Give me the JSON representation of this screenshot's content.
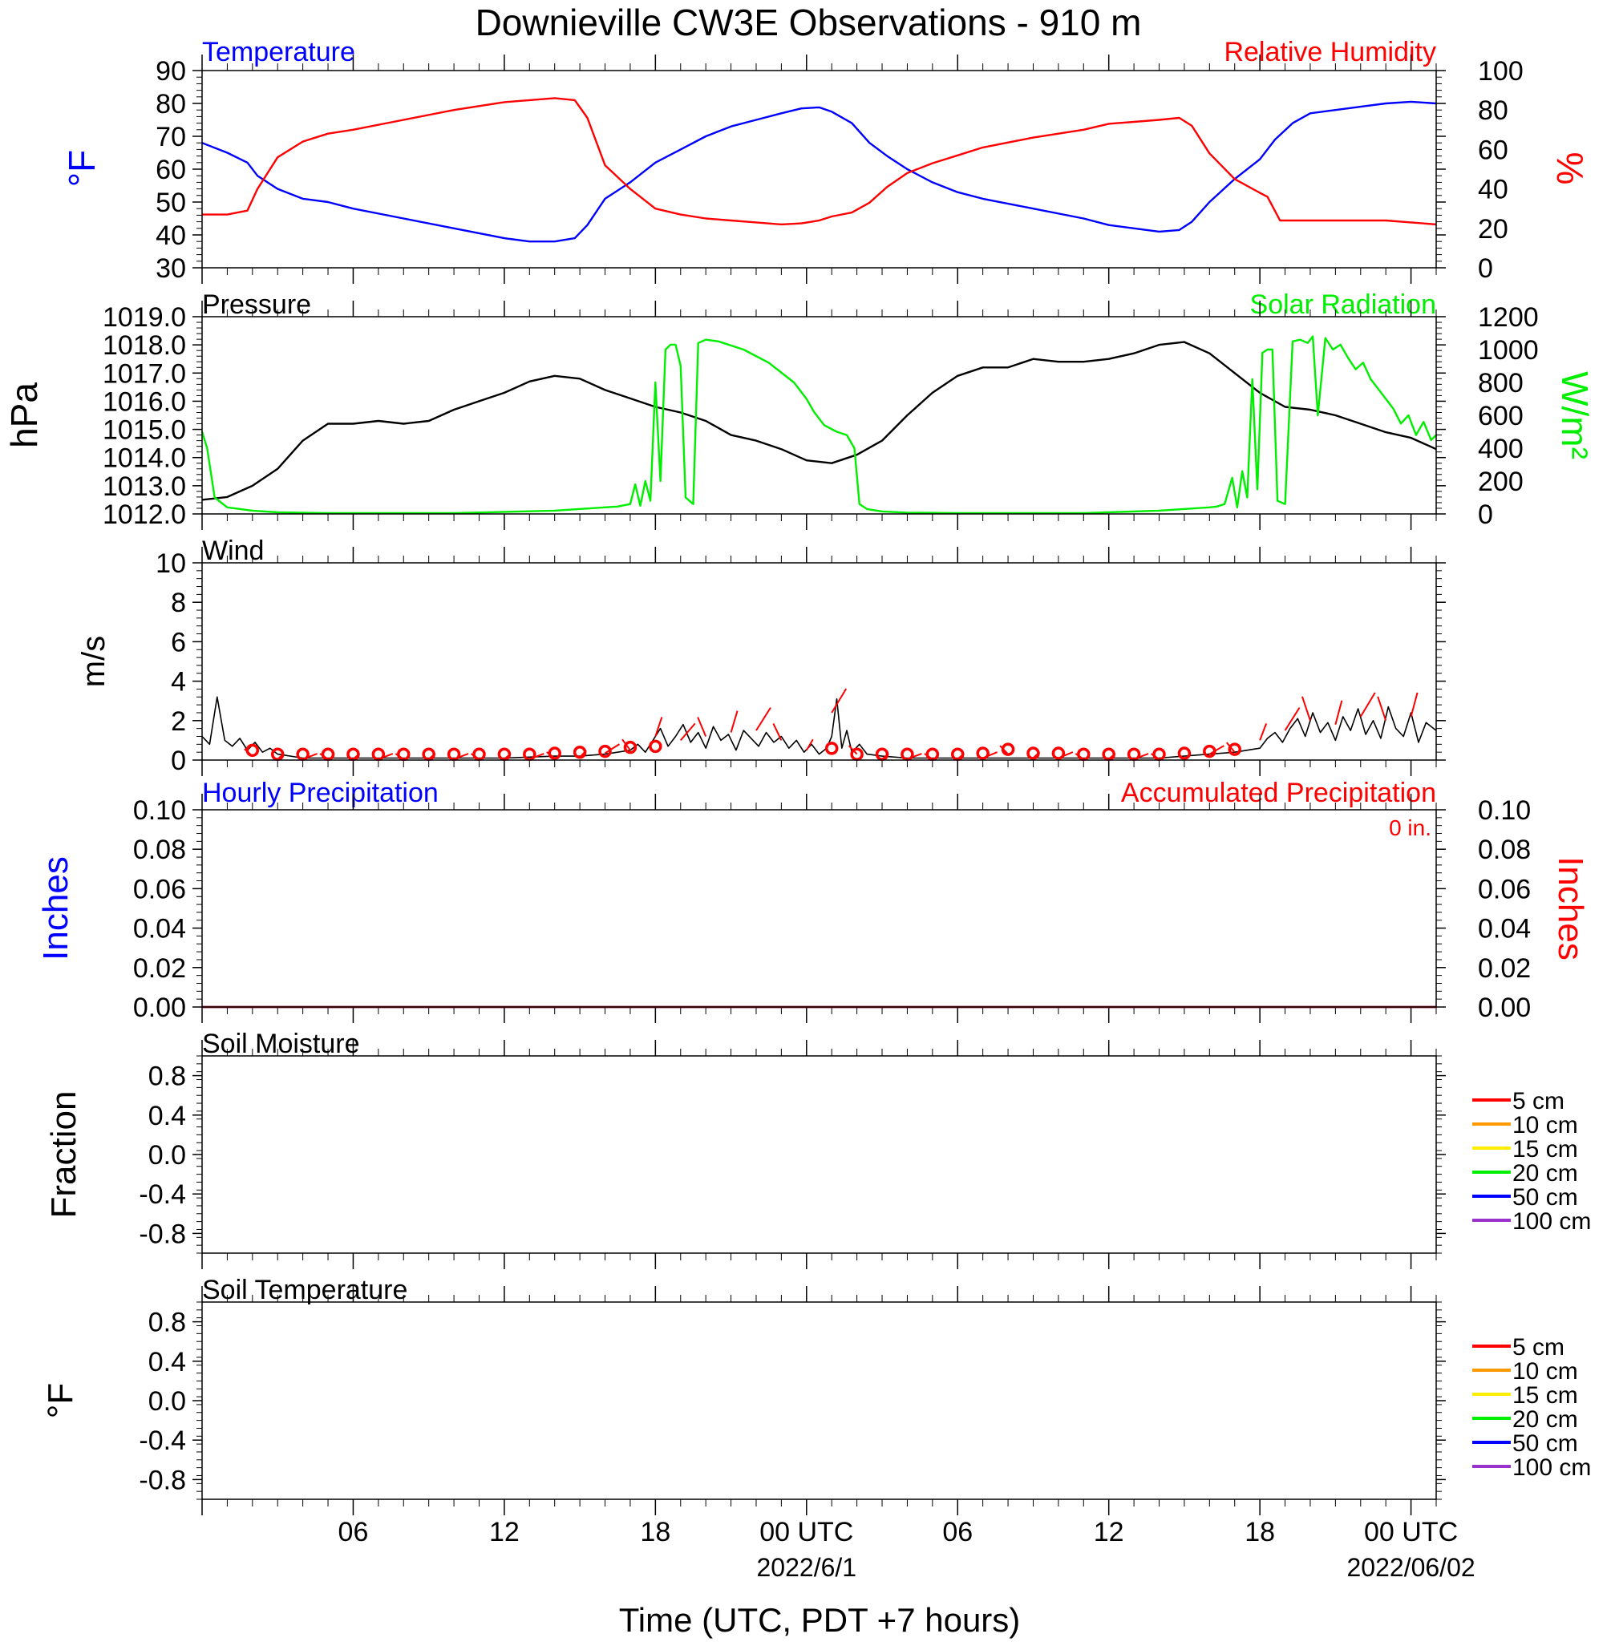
{
  "title": "Downieville CW3E Observations - 910 m",
  "xlabel": "Time (UTC, PDT +7 hours)",
  "x_ticks": [
    {
      "hour": 6,
      "label": "06",
      "date": ""
    },
    {
      "hour": 12,
      "label": "12",
      "date": ""
    },
    {
      "hour": 18,
      "label": "18",
      "date": ""
    },
    {
      "hour": 24,
      "label": "00 UTC",
      "date": "2022/6/1"
    },
    {
      "hour": 30,
      "label": "06",
      "date": ""
    },
    {
      "hour": 36,
      "label": "12",
      "date": ""
    },
    {
      "hour": 42,
      "label": "18",
      "date": ""
    },
    {
      "hour": 48,
      "label": "00 UTC",
      "date": "2022/06/02"
    }
  ],
  "colors": {
    "temp": "#0000ff",
    "rh": "#ff0000",
    "pressure": "#000000",
    "solar": "#00ee00",
    "wind": "#000000",
    "gust": "#ff0000",
    "precip_hourly": "#0000ff",
    "precip_acc": "#cc0000"
  },
  "panels": {
    "temp": {
      "title_left": "Temperature",
      "title_right": "Relative Humidity",
      "ylabel_left": "°F",
      "ylabel_right": "%"
    },
    "pressure": {
      "title_left": "Pressure",
      "title_right": "Solar Radiation",
      "ylabel_left": "hPa",
      "ylabel_right": "W/m²"
    },
    "wind": {
      "title_left": "Wind",
      "ylabel_left": "m/s"
    },
    "precip": {
      "title_left": "Hourly Precipitation",
      "title_right": "Accumulated Precipitation",
      "ylabel_left": "Inches",
      "ylabel_right": "Inches",
      "total": "0 in."
    },
    "soilm": {
      "title_left": "Soil Moisture",
      "ylabel_left": "Fraction"
    },
    "soilt": {
      "title_left": "Soil Temperature",
      "ylabel_left": "°F"
    }
  },
  "soil_legend": [
    {
      "label": "5 cm",
      "color": "#ff0000"
    },
    {
      "label": "10 cm",
      "color": "#ff9900"
    },
    {
      "label": "15 cm",
      "color": "#ffee00"
    },
    {
      "label": "20 cm",
      "color": "#00ee00"
    },
    {
      "label": "50 cm",
      "color": "#0000ff"
    },
    {
      "label": "100 cm",
      "color": "#9933cc"
    }
  ],
  "chart_data": [
    {
      "type": "line",
      "title": "Temperature / Relative Humidity",
      "x_units": "hours since 2022-05-31 00 UTC",
      "xlim": [
        0,
        49
      ],
      "ylim_left": [
        30,
        90
      ],
      "yticks_left": [
        "90",
        "80",
        "70",
        "60",
        "50",
        "40",
        "30"
      ],
      "ylim_right": [
        0,
        100
      ],
      "yticks_right": [
        "100",
        "80",
        "60",
        "40",
        "20",
        "0"
      ],
      "series": [
        {
          "name": "Temperature",
          "axis": "left",
          "x": [
            0,
            1,
            1.8,
            2.2,
            3,
            4,
            5,
            6,
            8,
            10,
            12,
            13,
            14,
            14.8,
            15.3,
            16,
            17,
            18,
            19,
            20,
            21,
            22,
            23,
            23.8,
            24.5,
            25,
            25.8,
            26.5,
            27.2,
            28,
            29,
            30,
            31,
            33,
            35,
            36,
            37,
            38,
            38.8,
            39.3,
            40,
            41,
            42,
            42.6,
            43.3,
            44,
            45,
            46,
            47,
            48,
            49
          ],
          "y": [
            68,
            65,
            62,
            58,
            54,
            51,
            50,
            48,
            45,
            42,
            39,
            38,
            38,
            39,
            43,
            51,
            56,
            62,
            66,
            70,
            73,
            75,
            77,
            78.5,
            78.8,
            77.5,
            74,
            68,
            64,
            60,
            56,
            53,
            51,
            48,
            45,
            43,
            42,
            41,
            41.5,
            44,
            50,
            57,
            63,
            69,
            74,
            77,
            78,
            79,
            80,
            80.5,
            80
          ]
        },
        {
          "name": "Relative Humidity",
          "axis": "right",
          "x": [
            0,
            1,
            1.8,
            2.2,
            3,
            4,
            5,
            6,
            8,
            10,
            12,
            13,
            14,
            14.8,
            15.3,
            16,
            17,
            18,
            19,
            20,
            21,
            22,
            23,
            23.8,
            24.5,
            25,
            25.8,
            26.5,
            27.2,
            28,
            29,
            30,
            31,
            33,
            35,
            36,
            37,
            38,
            38.8,
            39.3,
            40,
            41,
            42,
            42.3,
            42.8,
            44,
            45,
            46,
            47,
            48,
            49
          ],
          "y": [
            27,
            27,
            29,
            40,
            56,
            64,
            68,
            70,
            75,
            80,
            84,
            85,
            86,
            85,
            76,
            52,
            40,
            30,
            27,
            25,
            24,
            23,
            22,
            22.5,
            24,
            26,
            28,
            33,
            41,
            48,
            53,
            57,
            61,
            66,
            70,
            73,
            74,
            75,
            76,
            72,
            58,
            45,
            38,
            36,
            24,
            24,
            24,
            24,
            24,
            23,
            22
          ]
        }
      ]
    },
    {
      "type": "line",
      "title": "Pressure / Solar Radiation",
      "x_units": "hours since 2022-05-31 00 UTC",
      "xlim": [
        0,
        49
      ],
      "ylim_left": [
        1012.0,
        1019.0
      ],
      "yticks_left": [
        "1019.0",
        "1018.0",
        "1017.0",
        "1016.0",
        "1015.0",
        "1014.0",
        "1013.0",
        "1012.0"
      ],
      "ylim_right": [
        0,
        1200
      ],
      "yticks_right": [
        "1200",
        "1000",
        "800",
        "600",
        "400",
        "200",
        "0"
      ],
      "series": [
        {
          "name": "Pressure",
          "axis": "left",
          "x": [
            0,
            1,
            2,
            3,
            4,
            5,
            6,
            7,
            8,
            9,
            10,
            11,
            12,
            13,
            14,
            15,
            16,
            17,
            18,
            19,
            20,
            21,
            22,
            23,
            24,
            25,
            26,
            27,
            28,
            29,
            30,
            31,
            32,
            33,
            34,
            35,
            36,
            37,
            38,
            39,
            40,
            41,
            42,
            43,
            44,
            45,
            46,
            47,
            48,
            49
          ],
          "y": [
            1012.5,
            1012.6,
            1013.0,
            1013.6,
            1014.6,
            1015.2,
            1015.2,
            1015.3,
            1015.2,
            1015.3,
            1015.7,
            1016.0,
            1016.3,
            1016.7,
            1016.9,
            1016.8,
            1016.4,
            1016.1,
            1015.8,
            1015.6,
            1015.3,
            1014.8,
            1014.6,
            1014.3,
            1013.9,
            1013.8,
            1014.1,
            1014.6,
            1015.5,
            1016.3,
            1016.9,
            1017.2,
            1017.2,
            1017.5,
            1017.4,
            1017.4,
            1017.5,
            1017.7,
            1018.0,
            1018.1,
            1017.7,
            1017.0,
            1016.3,
            1015.8,
            1015.7,
            1015.5,
            1015.2,
            1014.9,
            1014.7,
            1014.3
          ]
        },
        {
          "name": "Solar Radiation",
          "axis": "right",
          "x": [
            0,
            0.2,
            0.5,
            1,
            2,
            3,
            5,
            10,
            14,
            16,
            16.5,
            17,
            17.2,
            17.4,
            17.6,
            17.8,
            18.0,
            18.2,
            18.4,
            18.6,
            18.8,
            19.0,
            19.2,
            19.5,
            19.7,
            20.0,
            20.5,
            21.5,
            22.5,
            23.5,
            24.0,
            24.3,
            24.7,
            25.2,
            25.6,
            25.9,
            26.1,
            26.4,
            27,
            28,
            30,
            35,
            38,
            40,
            40.3,
            40.6,
            40.9,
            41.1,
            41.3,
            41.5,
            41.7,
            41.9,
            42.1,
            42.3,
            42.5,
            42.7,
            43.0,
            43.3,
            43.6,
            43.9,
            44.1,
            44.3,
            44.6,
            44.9,
            45.2,
            45.5,
            45.8,
            46.1,
            46.4,
            46.7,
            47.0,
            47.3,
            47.6,
            47.9,
            48.2,
            48.5,
            48.8,
            49
          ],
          "y": [
            500,
            400,
            100,
            40,
            20,
            10,
            5,
            5,
            20,
            40,
            45,
            60,
            180,
            50,
            200,
            80,
            800,
            200,
            1000,
            1030,
            1030,
            900,
            100,
            60,
            1040,
            1060,
            1050,
            1000,
            920,
            800,
            700,
            620,
            540,
            500,
            480,
            400,
            60,
            30,
            15,
            8,
            5,
            5,
            20,
            40,
            45,
            60,
            220,
            40,
            260,
            100,
            820,
            150,
            980,
            1000,
            1000,
            80,
            60,
            1050,
            1060,
            1040,
            1080,
            600,
            1070,
            1000,
            1030,
            950,
            880,
            920,
            820,
            760,
            700,
            640,
            550,
            600,
            480,
            560,
            450,
            480
          ]
        }
      ]
    },
    {
      "type": "line",
      "title": "Wind",
      "x_units": "hours since 2022-05-31 00 UTC",
      "xlim": [
        0,
        49
      ],
      "ylim_left": [
        0,
        10
      ],
      "yticks_left": [
        "10",
        "8",
        "6",
        "4",
        "2",
        "0"
      ],
      "series": [
        {
          "name": "Wind speed",
          "axis": "left",
          "x": [
            0,
            0.3,
            0.6,
            0.9,
            1.2,
            1.5,
            1.8,
            2.1,
            2.4,
            2.7,
            3,
            4,
            6,
            8,
            10,
            12,
            14,
            15,
            16,
            16.5,
            17,
            17.3,
            17.6,
            17.9,
            18.2,
            18.5,
            18.8,
            19.1,
            19.4,
            19.7,
            20,
            20.3,
            20.6,
            20.9,
            21.2,
            21.5,
            21.8,
            22.1,
            22.4,
            22.7,
            23,
            23.3,
            23.6,
            23.9,
            24.2,
            24.5,
            24.8,
            25.0,
            25.2,
            25.4,
            25.6,
            25.8,
            26.1,
            26.4,
            27,
            28,
            30,
            32,
            34,
            36,
            38,
            40,
            41,
            41.5,
            42,
            42.3,
            42.6,
            42.9,
            43.2,
            43.5,
            43.8,
            44.1,
            44.4,
            44.7,
            45,
            45.3,
            45.6,
            45.9,
            46.2,
            46.5,
            46.8,
            47.1,
            47.4,
            47.7,
            48,
            48.3,
            48.6,
            49
          ],
          "y": [
            1.2,
            0.8,
            3.2,
            1.0,
            0.7,
            1.1,
            0.5,
            0.9,
            0.4,
            0.6,
            0.3,
            0.1,
            0.1,
            0.1,
            0.1,
            0.1,
            0.2,
            0.2,
            0.3,
            0.4,
            0.5,
            0.8,
            0.4,
            1.0,
            1.6,
            0.7,
            1.2,
            1.8,
            0.9,
            1.4,
            0.6,
            1.7,
            1.0,
            1.3,
            0.5,
            1.5,
            1.1,
            0.7,
            1.4,
            0.9,
            1.2,
            0.6,
            1.0,
            0.4,
            0.8,
            0.3,
            0.6,
            1.2,
            3.1,
            0.6,
            1.5,
            0.4,
            0.8,
            0.3,
            0.2,
            0.1,
            0.1,
            0.1,
            0.1,
            0.1,
            0.1,
            0.3,
            0.4,
            0.5,
            0.6,
            1.1,
            1.4,
            0.9,
            1.6,
            2.1,
            1.2,
            2.4,
            1.4,
            1.9,
            1.0,
            2.2,
            1.5,
            2.6,
            1.3,
            2.0,
            1.1,
            2.7,
            1.6,
            1.2,
            2.4,
            0.9,
            1.9,
            1.5
          ]
        },
        {
          "name": "Wind gust",
          "axis": "left",
          "x": [
            2,
            3,
            4,
            5,
            6,
            7,
            8,
            9,
            10,
            11,
            12,
            13,
            14,
            15,
            16,
            17,
            18,
            19,
            20,
            21,
            22,
            23,
            24,
            25,
            26,
            27,
            28,
            29,
            30,
            31,
            32,
            33,
            34,
            35,
            36,
            37,
            38,
            39,
            40,
            41,
            42,
            43,
            44,
            45,
            46,
            47,
            48
          ],
          "y": [
            0.2,
            0.05,
            0.05,
            0.05,
            0.05,
            0.05,
            0.05,
            0.05,
            0.05,
            0.05,
            0.05,
            0.05,
            0.1,
            0.15,
            0.35,
            0.5,
            1.2,
            1.0,
            1.2,
            1.4,
            1.5,
            1.0,
            0.5,
            2.4,
            0.3,
            0.05,
            0.05,
            0.05,
            0.05,
            0.1,
            0.3,
            0.1,
            0.1,
            0.05,
            0.05,
            0.05,
            0.05,
            0.05,
            0.3,
            0.4,
            1.0,
            1.5,
            2.0,
            1.8,
            2.2,
            2.0,
            2.2
          ]
        },
        {
          "name": "Hourly mean wind",
          "axis": "left",
          "x": [
            2,
            3,
            4,
            5,
            6,
            7,
            8,
            9,
            10,
            11,
            12,
            13,
            14,
            15,
            16,
            17,
            18,
            25,
            26,
            27,
            28,
            29,
            30,
            31,
            32,
            33,
            34,
            35,
            36,
            37,
            38,
            39,
            40,
            41
          ],
          "y": [
            0.25,
            0.05,
            0.05,
            0.05,
            0.05,
            0.05,
            0.05,
            0.05,
            0.05,
            0.05,
            0.05,
            0.05,
            0.1,
            0.15,
            0.2,
            0.4,
            0.45,
            0.35,
            0.05,
            0.05,
            0.05,
            0.05,
            0.05,
            0.1,
            0.3,
            0.1,
            0.1,
            0.05,
            0.05,
            0.05,
            0.05,
            0.1,
            0.2,
            0.3
          ]
        }
      ]
    },
    {
      "type": "line",
      "title": "Hourly Precipitation / Accumulated Precipitation",
      "x_units": "hours since 2022-05-31 00 UTC",
      "xlim": [
        0,
        49
      ],
      "ylim_left": [
        0,
        0.1
      ],
      "yticks_left": [
        "0.10",
        "0.08",
        "0.06",
        "0.04",
        "0.02",
        "0.00"
      ],
      "ylim_right": [
        0,
        0.1
      ],
      "yticks_right": [
        "0.10",
        "0.08",
        "0.06",
        "0.04",
        "0.02",
        "0.00"
      ],
      "series": [
        {
          "name": "Hourly Precipitation",
          "axis": "left",
          "x": [
            0,
            49
          ],
          "y": [
            0,
            0
          ]
        },
        {
          "name": "Accumulated Precipitation",
          "axis": "right",
          "x": [
            0,
            49
          ],
          "y": [
            0,
            0
          ]
        }
      ]
    },
    {
      "type": "line",
      "title": "Soil Moisture",
      "xlim": [
        0,
        49
      ],
      "ylim_left": [
        -1,
        1
      ],
      "yticks_left": [
        "0.8",
        "0.4",
        "0.0",
        "-0.4",
        "-0.8"
      ],
      "series": []
    },
    {
      "type": "line",
      "title": "Soil Temperature",
      "xlim": [
        0,
        49
      ],
      "ylim_left": [
        -1,
        1
      ],
      "yticks_left": [
        "0.8",
        "0.4",
        "0.0",
        "-0.4",
        "-0.8"
      ],
      "series": []
    }
  ]
}
